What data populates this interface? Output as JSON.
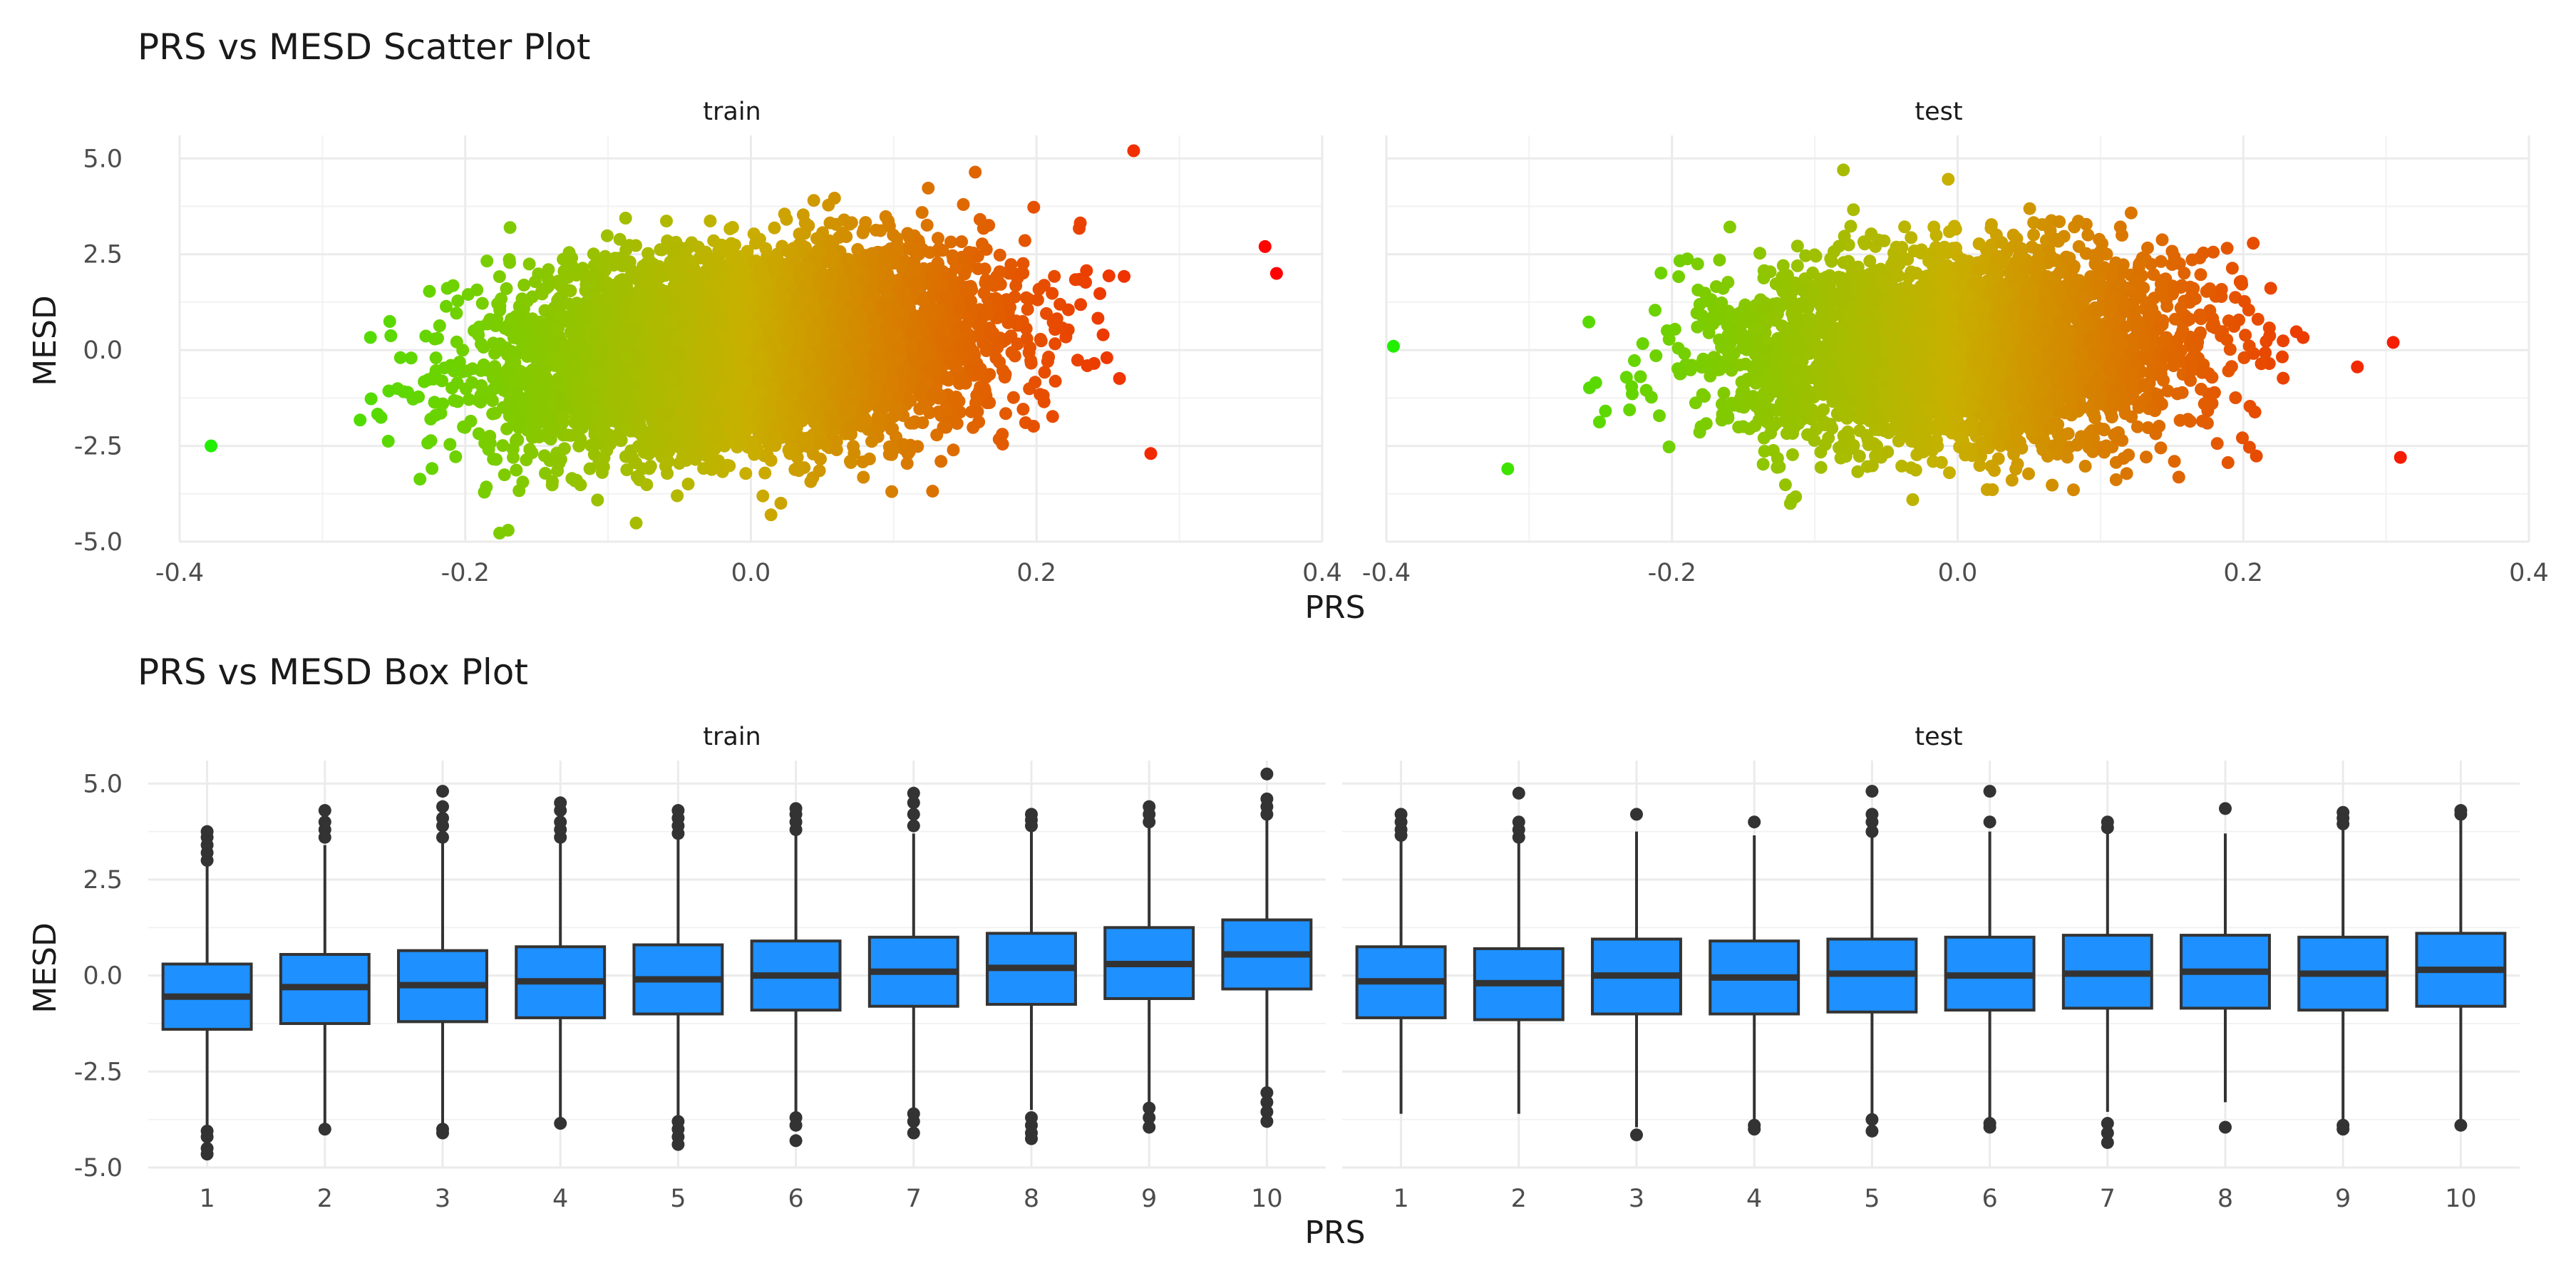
{
  "chart_data": [
    {
      "type": "scatter",
      "title": "PRS vs MESD Scatter Plot",
      "xlabel": "PRS",
      "ylabel": "MESD",
      "xlim": [
        -0.4,
        0.4
      ],
      "ylim": [
        -5.0,
        5.0
      ],
      "xticks": [
        "-0.4",
        "-0.2",
        "0.0",
        "0.2",
        "0.4"
      ],
      "yticks": [
        "-5.0",
        "-2.5",
        "0.0",
        "2.5",
        "5.0"
      ],
      "grid": true,
      "color_scale": {
        "low": "#22ee00",
        "mid": "#c8b000",
        "high": "#ff0000",
        "mapped_to": "PRS"
      },
      "facets": [
        {
          "label": "train",
          "x_range": [
            -0.378,
            0.368
          ],
          "y_range": [
            -4.7,
            5.2
          ],
          "notable_points": [
            {
              "x": 0.268,
              "y": 5.2
            },
            {
              "x": 0.368,
              "y": 2.0
            },
            {
              "x": 0.36,
              "y": 2.7
            },
            {
              "x": -0.378,
              "y": -2.5
            },
            {
              "x": -0.17,
              "y": -4.7
            },
            {
              "x": 0.28,
              "y": -2.7
            }
          ]
        },
        {
          "label": "test",
          "x_range": [
            -0.395,
            0.31
          ],
          "y_range": [
            -4.3,
            4.8
          ],
          "notable_points": [
            {
              "x": -0.395,
              "y": 0.1
            },
            {
              "x": -0.315,
              "y": -3.1
            },
            {
              "x": 0.31,
              "y": -2.8
            },
            {
              "x": 0.305,
              "y": 0.2
            },
            {
              "x": -0.08,
              "y": 4.7
            }
          ]
        }
      ]
    },
    {
      "type": "box",
      "title": "PRS vs MESD Box Plot",
      "xlabel": "PRS",
      "ylabel": "MESD",
      "ylim": [
        -5.0,
        5.0
      ],
      "categories": [
        "1",
        "2",
        "3",
        "4",
        "5",
        "6",
        "7",
        "8",
        "9",
        "10"
      ],
      "yticks": [
        "-5.0",
        "-2.5",
        "0.0",
        "2.5",
        "5.0"
      ],
      "grid": true,
      "box_color": "#1e90ff",
      "facets": [
        {
          "label": "train",
          "boxes": [
            {
              "q1": -1.4,
              "median": -0.55,
              "q3": 0.3,
              "lower": -3.95,
              "upper": 2.9,
              "outliers_low": [
                -4.05,
                -4.2,
                -4.5,
                -4.65
              ],
              "outliers_high": [
                3.0,
                3.2,
                3.4,
                3.6,
                3.75
              ]
            },
            {
              "q1": -1.25,
              "median": -0.3,
              "q3": 0.55,
              "lower": -3.9,
              "upper": 3.4,
              "outliers_low": [
                -4.0
              ],
              "outliers_high": [
                3.6,
                3.8,
                4.0,
                4.3
              ]
            },
            {
              "q1": -1.2,
              "median": -0.25,
              "q3": 0.65,
              "lower": -3.9,
              "upper": 3.5,
              "outliers_low": [
                -4.0,
                -4.1
              ],
              "outliers_high": [
                3.6,
                3.9,
                4.1,
                4.4,
                4.8
              ]
            },
            {
              "q1": -1.1,
              "median": -0.15,
              "q3": 0.75,
              "lower": -3.7,
              "upper": 3.5,
              "outliers_low": [
                -3.85
              ],
              "outliers_high": [
                3.6,
                3.8,
                4.0,
                4.3,
                4.5
              ]
            },
            {
              "q1": -1.0,
              "median": -0.1,
              "q3": 0.8,
              "lower": -3.65,
              "upper": 3.6,
              "outliers_low": [
                -3.8,
                -4.0,
                -4.2,
                -4.4
              ],
              "outliers_high": [
                3.7,
                3.9,
                4.1,
                4.3
              ]
            },
            {
              "q1": -0.9,
              "median": 0.0,
              "q3": 0.9,
              "lower": -3.55,
              "upper": 3.7,
              "outliers_low": [
                -3.7,
                -3.9,
                -4.3
              ],
              "outliers_high": [
                3.8,
                4.0,
                4.2,
                4.35
              ]
            },
            {
              "q1": -0.8,
              "median": 0.1,
              "q3": 1.0,
              "lower": -3.45,
              "upper": 3.7,
              "outliers_low": [
                -3.6,
                -3.8,
                -4.1
              ],
              "outliers_high": [
                3.9,
                4.2,
                4.5,
                4.75
              ]
            },
            {
              "q1": -0.75,
              "median": 0.2,
              "q3": 1.1,
              "lower": -3.5,
              "upper": 3.8,
              "outliers_low": [
                -3.7,
                -3.9,
                -4.1,
                -4.25
              ],
              "outliers_high": [
                3.9,
                4.05,
                4.2
              ]
            },
            {
              "q1": -0.6,
              "median": 0.3,
              "q3": 1.25,
              "lower": -3.3,
              "upper": 3.9,
              "outliers_low": [
                -3.45,
                -3.7,
                -3.95
              ],
              "outliers_high": [
                4.0,
                4.2,
                4.4
              ]
            },
            {
              "q1": -0.35,
              "median": 0.55,
              "q3": 1.45,
              "lower": -2.95,
              "upper": 4.1,
              "outliers_low": [
                -3.05,
                -3.3,
                -3.55,
                -3.8
              ],
              "outliers_high": [
                4.2,
                4.4,
                4.6,
                5.25
              ]
            }
          ]
        },
        {
          "label": "test",
          "boxes": [
            {
              "q1": -1.1,
              "median": -0.15,
              "q3": 0.75,
              "lower": -3.6,
              "upper": 3.55,
              "outliers_low": [],
              "outliers_high": [
                3.65,
                3.8,
                4.0,
                4.2
              ]
            },
            {
              "q1": -1.15,
              "median": -0.2,
              "q3": 0.7,
              "lower": -3.6,
              "upper": 3.45,
              "outliers_low": [],
              "outliers_high": [
                3.6,
                3.8,
                4.0,
                4.75
              ]
            },
            {
              "q1": -1.0,
              "median": 0.0,
              "q3": 0.95,
              "lower": -3.95,
              "upper": 3.75,
              "outliers_low": [
                -4.15
              ],
              "outliers_high": [
                4.2
              ]
            },
            {
              "q1": -1.0,
              "median": -0.05,
              "q3": 0.9,
              "lower": -3.75,
              "upper": 3.65,
              "outliers_low": [
                -3.9,
                -4.0
              ],
              "outliers_high": [
                4.0
              ]
            },
            {
              "q1": -0.95,
              "median": 0.05,
              "q3": 0.95,
              "lower": -3.6,
              "upper": 3.7,
              "outliers_low": [
                -3.75,
                -4.05
              ],
              "outliers_high": [
                3.75,
                4.0,
                4.2,
                4.8
              ]
            },
            {
              "q1": -0.9,
              "median": 0.0,
              "q3": 1.0,
              "lower": -3.7,
              "upper": 3.75,
              "outliers_low": [
                -3.85,
                -3.95
              ],
              "outliers_high": [
                4.0,
                4.8
              ]
            },
            {
              "q1": -0.85,
              "median": 0.05,
              "q3": 1.05,
              "lower": -3.55,
              "upper": 3.75,
              "outliers_low": [
                -3.85,
                -4.1,
                -4.35
              ],
              "outliers_high": [
                3.85,
                4.0
              ]
            },
            {
              "q1": -0.85,
              "median": 0.1,
              "q3": 1.05,
              "lower": -3.3,
              "upper": 3.7,
              "outliers_low": [
                -3.95
              ],
              "outliers_high": [
                4.35
              ]
            },
            {
              "q1": -0.9,
              "median": 0.05,
              "q3": 1.0,
              "lower": -3.75,
              "upper": 3.85,
              "outliers_low": [
                -3.9,
                -4.0
              ],
              "outliers_high": [
                3.95,
                4.1,
                4.25
              ]
            },
            {
              "q1": -0.8,
              "median": 0.15,
              "q3": 1.1,
              "lower": -3.8,
              "upper": 4.1,
              "outliers_low": [
                -3.9
              ],
              "outliers_high": [
                4.2,
                4.3
              ]
            }
          ]
        }
      ]
    }
  ]
}
